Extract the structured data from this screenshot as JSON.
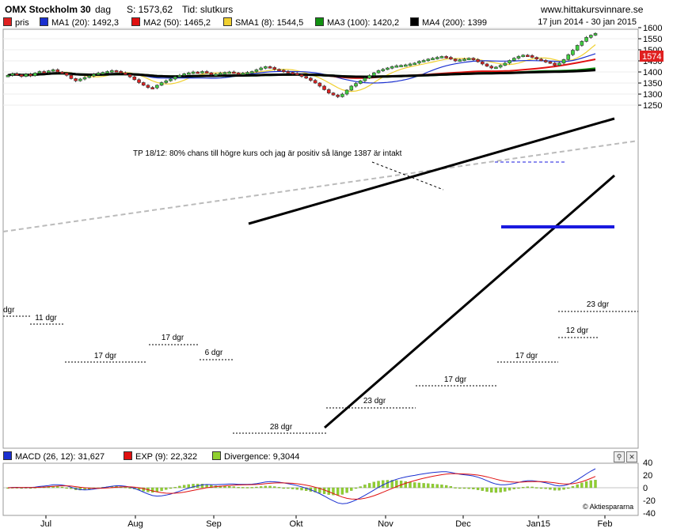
{
  "header": {
    "title": "OMX Stockholm 30",
    "interval": "dag",
    "last": "S: 1573,62",
    "time": "Tid: slutkurs",
    "site": "www.hittakursvinnare.se"
  },
  "legend": [
    {
      "label": "pris",
      "color": "#e02020"
    },
    {
      "label": "MA1 (20): 1492,3",
      "color": "#1a2fd0"
    },
    {
      "label": "MA2 (50): 1465,2",
      "color": "#e01010"
    },
    {
      "label": "SMA1 (8): 1544,5",
      "color": "#f0d030"
    },
    {
      "label": "MA3 (100): 1420,2",
      "color": "#109010"
    },
    {
      "label": "MA4 (200): 1399",
      "color": "#000000"
    }
  ],
  "date_range": "17 jun 2014 - 30 jan 2015",
  "macd_legend": [
    {
      "label": "MACD (26, 12): 31,627",
      "color": "#1a2fd0"
    },
    {
      "label": "EXP (9): 22,322",
      "color": "#e01010"
    },
    {
      "label": "Divergence: 9,3044",
      "color": "#90d030"
    }
  ],
  "copyright": "© Aktiespararna",
  "last_price_label": "1574",
  "chart_data": {
    "type": "candlestick",
    "y_ticks": [
      1250,
      1300,
      1350,
      1400,
      1450,
      1500,
      1550,
      1600
    ],
    "x_labels": [
      "Jul",
      "Aug",
      "Sep",
      "Okt",
      "Nov",
      "Dec",
      "Jan15",
      "Feb"
    ],
    "close_series": [
      1385,
      1392,
      1388,
      1380,
      1390,
      1383,
      1395,
      1402,
      1398,
      1405,
      1410,
      1400,
      1395,
      1385,
      1370,
      1360,
      1368,
      1375,
      1382,
      1390,
      1395,
      1398,
      1402,
      1406,
      1403,
      1396,
      1388,
      1378,
      1365,
      1352,
      1340,
      1330,
      1328,
      1340,
      1352,
      1360,
      1368,
      1378,
      1385,
      1392,
      1396,
      1400,
      1398,
      1402,
      1396,
      1388,
      1390,
      1395,
      1398,
      1400,
      1396,
      1392,
      1395,
      1398,
      1402,
      1410,
      1418,
      1424,
      1420,
      1412,
      1408,
      1402,
      1398,
      1394,
      1388,
      1380,
      1372,
      1362,
      1350,
      1336,
      1320,
      1305,
      1296,
      1288,
      1300,
      1318,
      1336,
      1348,
      1360,
      1372,
      1384,
      1396,
      1406,
      1412,
      1418,
      1424,
      1428,
      1430,
      1432,
      1436,
      1440,
      1448,
      1452,
      1458,
      1462,
      1466,
      1470,
      1466,
      1458,
      1450,
      1455,
      1458,
      1462,
      1456,
      1446,
      1436,
      1426,
      1418,
      1422,
      1430,
      1440,
      1452,
      1462,
      1470,
      1476,
      1474,
      1466,
      1458,
      1452,
      1446,
      1440,
      1430,
      1440,
      1456,
      1478,
      1498,
      1520,
      1538,
      1556,
      1566,
      1574
    ],
    "ma20_last": 1492.3,
    "ma50_last": 1465.2,
    "sma8_last": 1544.5,
    "ma100_last": 1420.2,
    "ma200_last": 1399,
    "annotations": [
      {
        "text": "TP 18/12: 80% chans till högre kurs och jag är positiv så länge 1387 är intakt"
      },
      {
        "text": "dgr"
      },
      {
        "text": "11 dgr"
      },
      {
        "text": "17 dgr"
      },
      {
        "text": "17 dgr"
      },
      {
        "text": "6 dgr"
      },
      {
        "text": "28 dgr"
      },
      {
        "text": "23 dgr"
      },
      {
        "text": "17 dgr"
      },
      {
        "text": "17 dgr"
      },
      {
        "text": "12 dgr"
      },
      {
        "text": "23 dgr"
      }
    ],
    "macd_ticks": [
      40,
      20,
      0,
      -20,
      -40
    ]
  }
}
